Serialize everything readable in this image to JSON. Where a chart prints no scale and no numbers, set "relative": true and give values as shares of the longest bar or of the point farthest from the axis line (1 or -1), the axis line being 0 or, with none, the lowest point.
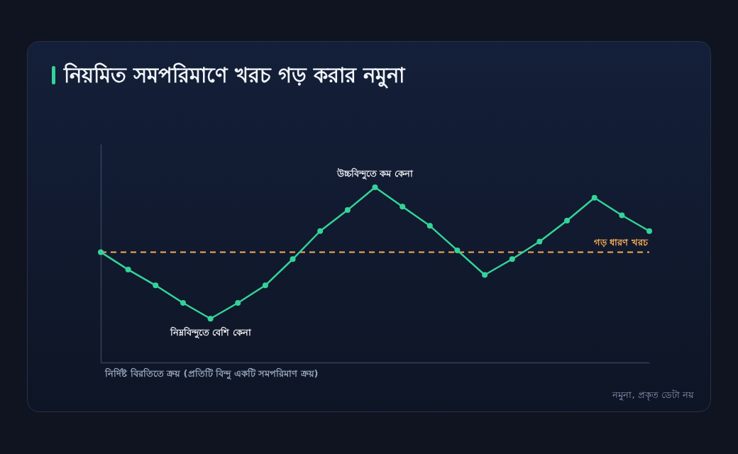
{
  "chart_data": {
    "type": "line",
    "title": "নিয়মিত সমপরিমাণে খরচ গড় করার নমুনা",
    "xlabel": "নির্দিষ্ট বিরতিতে ক্রয় (প্রতিটি বিন্দু একটি সমপরিমাণ ক্রয়)",
    "relative": true,
    "tick_labels": false,
    "marker": "circle",
    "categories": [
      null,
      null,
      null,
      null,
      null,
      null,
      null,
      null,
      null,
      null,
      null,
      null,
      null,
      null,
      null,
      null,
      null,
      null,
      null,
      null,
      null
    ],
    "series": [
      {
        "type": "line",
        "color": "#34d399",
        "values": [
          0.63,
          0.53,
          0.44,
          0.34,
          0.25,
          0.34,
          0.44,
          0.59,
          0.75,
          0.87,
          1,
          0.89,
          0.78,
          0.64,
          0.5,
          0.59,
          0.69,
          0.81,
          0.94,
          0.84,
          0.75
        ]
      }
    ],
    "ref_lines": [
      {
        "axis": "y",
        "value": 0.63,
        "label": "গড় ধারণ খরচ",
        "color": "#f6ad55",
        "line_style": "dashed"
      }
    ],
    "annotations": [
      {
        "text": "উচ্চবিন্দুতে কম কেনা",
        "y": 1
      },
      {
        "text": "নিম্নবিন্দুতে বেশি কেনা",
        "y": 0.25
      },
      "নমুনা, প্রকৃত ডেটা নয়"
    ]
  }
}
